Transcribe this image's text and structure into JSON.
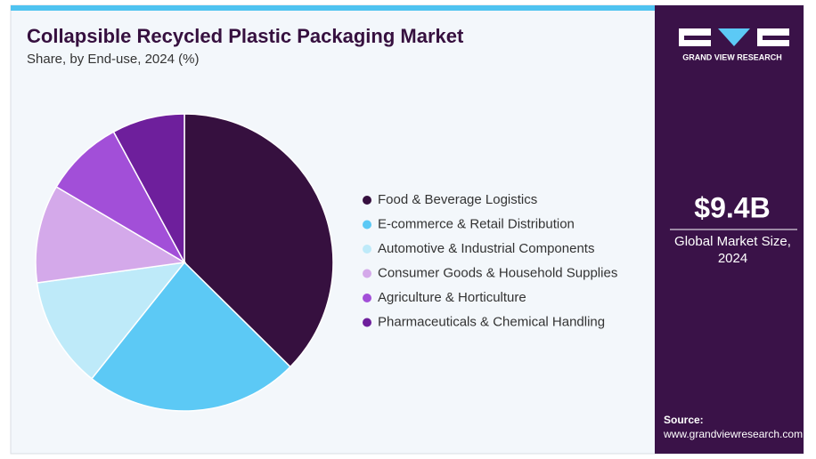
{
  "chart_data": {
    "type": "pie",
    "title": "Collapsible Recycled Plastic Packaging Market",
    "subtitle": "Share, by End-use, 2024 (%)",
    "categories": [
      "Food & Beverage Logistics",
      "E-commerce & Retail Distribution",
      "Automotive & Industrial Components",
      "Consumer Goods & Household Supplies",
      "Agriculture & Horticulture",
      "Pharmaceuticals & Chemical Handling"
    ],
    "values": [
      37.4,
      23.3,
      12.1,
      10.7,
      8.6,
      7.9
    ],
    "colors": [
      "#36103f",
      "#5cc9f5",
      "#beeaf9",
      "#d4a9ea",
      "#a24fd8",
      "#6e1f9c"
    ]
  },
  "sidebar": {
    "brand": "GRAND VIEW RESEARCH",
    "market_size": "$9.4B",
    "market_label": "Global Market Size, 2024",
    "source_label": "Source:",
    "source_url": "www.grandviewresearch.com"
  }
}
